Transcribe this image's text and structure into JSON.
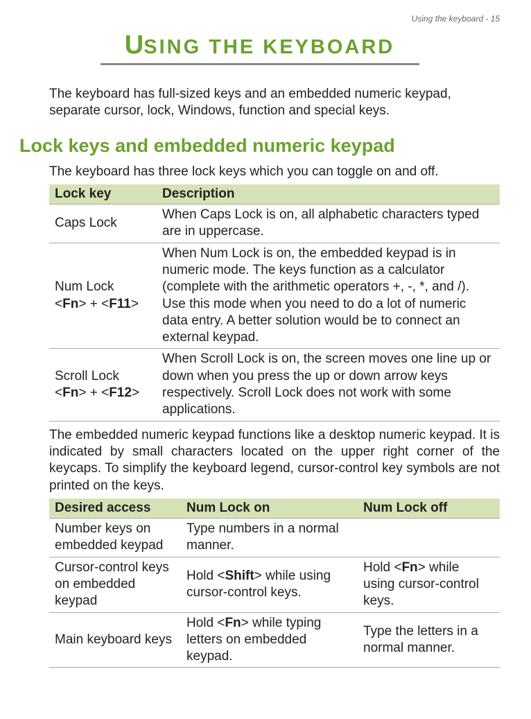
{
  "running_head": "Using the keyboard - 15",
  "chapter_title_first": "U",
  "chapter_title_rest": "SING THE KEYBOARD",
  "intro": "The keyboard has full-sized keys and an embedded numeric keypad, separate cursor, lock, Windows, function and special keys.",
  "section1_title": "Lock keys and embedded numeric keypad",
  "section1_intro": "The keyboard has three lock keys which you can toggle on and off.",
  "table1": {
    "headers": {
      "c0": "Lock key",
      "c1": "Description"
    },
    "rows": {
      "r0": {
        "c0": "Caps Lock",
        "c1": "When Caps Lock is on, all alphabetic characters typed are in uppercase."
      },
      "r1": {
        "c0_line1": "Num Lock",
        "c0_line2_pre": "<",
        "c0_line2_fn": "Fn",
        "c0_line2_mid": "> + <",
        "c0_line2_f11": "F11",
        "c0_line2_post": ">",
        "c1": "When Num Lock is on, the embedded keypad is in numeric mode. The keys function as a calculator (complete with the arithmetic operators +, -, *, and /). Use this mode when you need to do a lot of numeric data entry. A better solution would be to connect an external keypad."
      },
      "r2": {
        "c0_line1": "Scroll Lock",
        "c0_line2_pre": "<",
        "c0_line2_fn": "Fn",
        "c0_line2_mid": "> + <",
        "c0_line2_f12": "F12",
        "c0_line2_post": ">",
        "c1": "When Scroll Lock is on, the screen moves one line up or down when you press the up or down arrow keys respectively. Scroll Lock does not work with some applications."
      }
    }
  },
  "section1_para2": "The embedded numeric keypad functions like a desktop numeric keypad. It is indicated by small characters located on the upper right corner of the keycaps. To simplify the keyboard legend, cursor-control key symbols are not printed on the keys.",
  "table2": {
    "headers": {
      "c0": "Desired access",
      "c1": "Num Lock on",
      "c2": "Num Lock off"
    },
    "rows": {
      "r0": {
        "c0": "Number keys on embedded keypad",
        "c1": "Type numbers in a normal manner.",
        "c2": ""
      },
      "r1": {
        "c0": "Cursor-control keys on embedded keypad",
        "c1_pre": "Hold <",
        "c1_key": "Shift",
        "c1_post": "> while using cursor-control keys.",
        "c2_pre": "Hold <",
        "c2_key": "Fn",
        "c2_post": "> while using cursor-control keys."
      },
      "r2": {
        "c0": "Main keyboard keys",
        "c1_pre": "Hold <",
        "c1_key": "Fn",
        "c1_post": "> while typing letters on embedded keypad.",
        "c2": "Type the letters in a normal manner."
      }
    }
  },
  "colors": {
    "accent": "#6aa22c",
    "header_bg": "#d5e2b6",
    "rule": "#888888",
    "border": "#aaaaaa",
    "running_head": "#666666"
  }
}
